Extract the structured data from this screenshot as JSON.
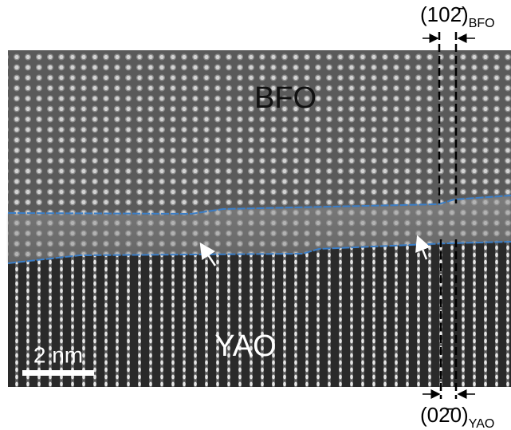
{
  "labels": {
    "top_plane": "(102̄)",
    "top_plane_sub": "BFO",
    "film": "BFO",
    "substrate": "YAO",
    "scale_bar": "2 nm",
    "bottom_plane": "(02̄0)",
    "bottom_plane_sub": "YAO"
  }
}
